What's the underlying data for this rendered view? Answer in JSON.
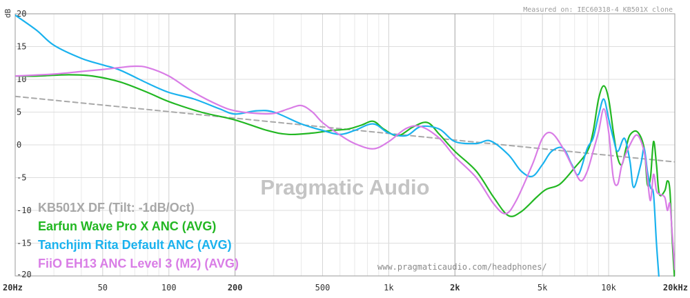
{
  "chart_data": {
    "type": "line",
    "ylabel": "dB",
    "ylim": [
      -20,
      20
    ],
    "xlim": [
      20,
      20000
    ],
    "xscale": "log",
    "grid": true,
    "legend_position": "bottom-left",
    "y_ticks": [
      "20",
      "15",
      "10",
      "5",
      "0",
      "-5",
      "-10",
      "-15",
      "-20"
    ],
    "x_ticks": [
      {
        "label": "20Hz",
        "value": 20,
        "major": true
      },
      {
        "label": "50",
        "value": 50,
        "major": false
      },
      {
        "label": "100",
        "value": 100,
        "major": false
      },
      {
        "label": "200",
        "value": 200,
        "major": true
      },
      {
        "label": "500",
        "value": 500,
        "major": false
      },
      {
        "label": "1k",
        "value": 1000,
        "major": false
      },
      {
        "label": "2k",
        "value": 2000,
        "major": true
      },
      {
        "label": "5k",
        "value": 5000,
        "major": false
      },
      {
        "label": "10k",
        "value": 10000,
        "major": false
      },
      {
        "label": "20kHz",
        "value": 20000,
        "major": true
      }
    ],
    "top_note": "Measured on: IEC60318-4 KB501X clone",
    "watermark": "Pragmatic Audio",
    "url": "www.pragmaticaudio.com/headphones/",
    "series": [
      {
        "name": "KB501X DF (Tilt: -1dB/Oct)",
        "color": "#a8a8a8",
        "dashed": true,
        "points": [
          [
            20,
            7.4
          ],
          [
            20000,
            -2.6
          ]
        ]
      },
      {
        "name": "Earfun Wave Pro X ANC (AVG)",
        "color": "#22b722",
        "dashed": false,
        "points": [
          [
            20,
            10.5
          ],
          [
            25,
            10.5
          ],
          [
            35,
            10.7
          ],
          [
            45,
            10.5
          ],
          [
            60,
            9.6
          ],
          [
            80,
            8.0
          ],
          [
            100,
            6.6
          ],
          [
            140,
            5.0
          ],
          [
            200,
            3.8
          ],
          [
            280,
            2.2
          ],
          [
            350,
            1.6
          ],
          [
            450,
            1.8
          ],
          [
            550,
            2.2
          ],
          [
            650,
            2.4
          ],
          [
            750,
            3.0
          ],
          [
            850,
            3.6
          ],
          [
            950,
            2.4
          ],
          [
            1100,
            1.4
          ],
          [
            1300,
            2.8
          ],
          [
            1500,
            3.4
          ],
          [
            1700,
            1.6
          ],
          [
            2000,
            -1.0
          ],
          [
            2500,
            -4.0
          ],
          [
            3000,
            -8.0
          ],
          [
            3500,
            -10.8
          ],
          [
            4000,
            -10.2
          ],
          [
            4700,
            -8.0
          ],
          [
            5200,
            -6.8
          ],
          [
            6000,
            -6.0
          ],
          [
            7000,
            -3.5
          ],
          [
            8000,
            -1.0
          ],
          [
            8500,
            2.0
          ],
          [
            9000,
            7.0
          ],
          [
            9500,
            9.0
          ],
          [
            10000,
            7.0
          ],
          [
            10500,
            2.0
          ],
          [
            11000,
            -2.0
          ],
          [
            11500,
            -3.0
          ],
          [
            12000,
            -0.5
          ],
          [
            12500,
            1.5
          ],
          [
            13500,
            2.0
          ],
          [
            14500,
            -0.5
          ],
          [
            15000,
            -6.0
          ],
          [
            15500,
            -5.0
          ],
          [
            16000,
            0.5
          ],
          [
            16500,
            -3.0
          ],
          [
            17000,
            -7.5
          ],
          [
            18000,
            -7.0
          ],
          [
            18500,
            -5.5
          ],
          [
            19000,
            -7.0
          ],
          [
            19500,
            -15.0
          ],
          [
            20000,
            -21.0
          ]
        ]
      },
      {
        "name": "Tanchjim Rita Default ANC (AVG)",
        "color": "#1ab2ee",
        "dashed": false,
        "points": [
          [
            20,
            19.8
          ],
          [
            25,
            17.5
          ],
          [
            30,
            15.2
          ],
          [
            40,
            13.2
          ],
          [
            50,
            12.2
          ],
          [
            60,
            11.4
          ],
          [
            80,
            9.4
          ],
          [
            100,
            8.0
          ],
          [
            130,
            7.0
          ],
          [
            170,
            5.5
          ],
          [
            200,
            4.7
          ],
          [
            250,
            5.2
          ],
          [
            300,
            5.0
          ],
          [
            400,
            3.2
          ],
          [
            500,
            2.2
          ],
          [
            600,
            1.6
          ],
          [
            700,
            2.2
          ],
          [
            850,
            3.2
          ],
          [
            1000,
            1.8
          ],
          [
            1200,
            1.4
          ],
          [
            1400,
            2.8
          ],
          [
            1700,
            2.4
          ],
          [
            2000,
            0.5
          ],
          [
            2500,
            0.2
          ],
          [
            2900,
            0.6
          ],
          [
            3500,
            -1.5
          ],
          [
            4000,
            -4.0
          ],
          [
            4500,
            -4.8
          ],
          [
            5000,
            -3.0
          ],
          [
            5500,
            -1.0
          ],
          [
            6200,
            -0.5
          ],
          [
            6800,
            -3.0
          ],
          [
            7300,
            -4.5
          ],
          [
            8000,
            -0.5
          ],
          [
            8500,
            1.0
          ],
          [
            9000,
            4.5
          ],
          [
            9500,
            7.0
          ],
          [
            10000,
            4.0
          ],
          [
            10500,
            1.0
          ],
          [
            11000,
            -1.0
          ],
          [
            11800,
            1.0
          ],
          [
            12500,
            -2.5
          ],
          [
            13000,
            -6.5
          ],
          [
            14000,
            -3.0
          ],
          [
            14500,
            -0.5
          ],
          [
            15000,
            -4.0
          ],
          [
            15500,
            -6.5
          ],
          [
            16000,
            -7.5
          ],
          [
            16500,
            -15.0
          ],
          [
            17000,
            -21.0
          ]
        ]
      },
      {
        "name": "FiiO EH13 ANC Level 3 (M2) (AVG)",
        "color": "#d97de6",
        "dashed": false,
        "points": [
          [
            20,
            10.5
          ],
          [
            30,
            10.8
          ],
          [
            40,
            11.2
          ],
          [
            50,
            11.5
          ],
          [
            60,
            11.8
          ],
          [
            70,
            12.0
          ],
          [
            80,
            11.8
          ],
          [
            100,
            10.5
          ],
          [
            130,
            8.0
          ],
          [
            170,
            6.0
          ],
          [
            200,
            5.2
          ],
          [
            250,
            4.8
          ],
          [
            300,
            4.8
          ],
          [
            350,
            5.5
          ],
          [
            400,
            6.0
          ],
          [
            450,
            5.0
          ],
          [
            500,
            3.4
          ],
          [
            600,
            1.5
          ],
          [
            700,
            0.2
          ],
          [
            850,
            -0.6
          ],
          [
            1000,
            0.5
          ],
          [
            1200,
            2.5
          ],
          [
            1400,
            2.8
          ],
          [
            1700,
            1.0
          ],
          [
            2000,
            -1.8
          ],
          [
            2500,
            -5.0
          ],
          [
            3000,
            -9.0
          ],
          [
            3400,
            -10.5
          ],
          [
            3800,
            -8.5
          ],
          [
            4500,
            -3.0
          ],
          [
            5000,
            1.0
          ],
          [
            5500,
            1.8
          ],
          [
            6200,
            -0.5
          ],
          [
            7000,
            -4.0
          ],
          [
            7500,
            -5.5
          ],
          [
            8000,
            -4.0
          ],
          [
            8500,
            -1.0
          ],
          [
            9000,
            2.0
          ],
          [
            9500,
            5.5
          ],
          [
            10000,
            2.0
          ],
          [
            10500,
            -5.0
          ],
          [
            11000,
            -6.0
          ],
          [
            11500,
            -3.0
          ],
          [
            12500,
            0.0
          ],
          [
            13500,
            1.5
          ],
          [
            14500,
            -1.0
          ],
          [
            15000,
            -5.0
          ],
          [
            15500,
            -8.5
          ],
          [
            16000,
            -4.5
          ],
          [
            16500,
            -7.0
          ],
          [
            17000,
            -7.5
          ],
          [
            18000,
            -8.0
          ],
          [
            18500,
            -10.0
          ],
          [
            19000,
            -9.0
          ],
          [
            19500,
            -14.0
          ],
          [
            20000,
            -19.0
          ]
        ]
      }
    ]
  }
}
